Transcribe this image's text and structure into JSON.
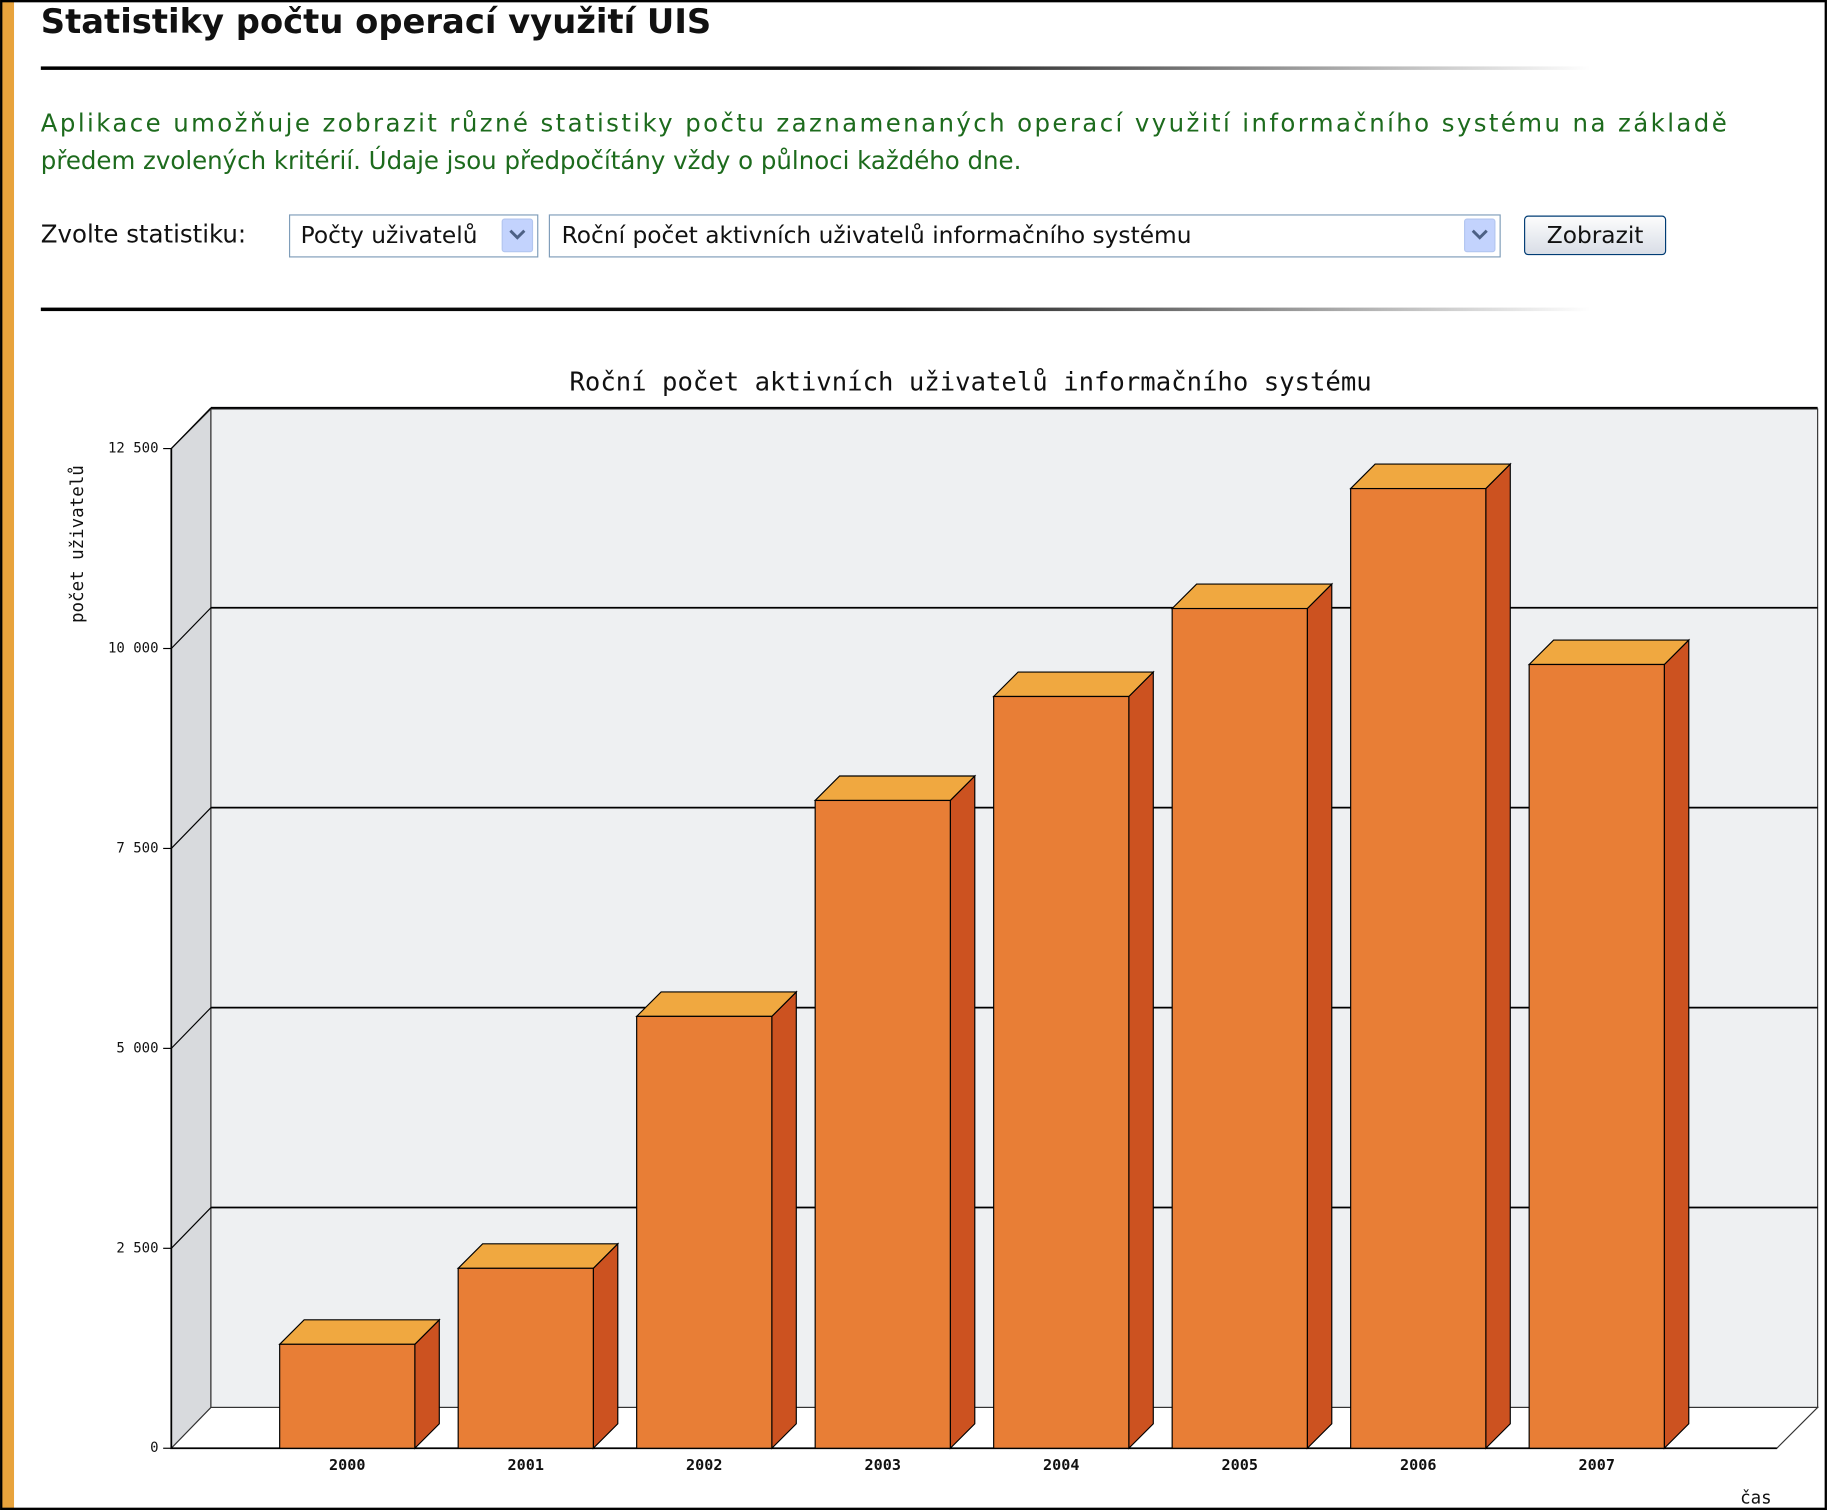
{
  "header": {
    "title": "Statistiky počtu operací využití UIS"
  },
  "description": [
    "Aplikace umožňuje zobrazit různé statistiky počtu zaznamenaných operací využití informačního systému na základě",
    "předem zvolených kritérií. Údaje jsou předpočítány vždy o půlnoci každého dne."
  ],
  "form": {
    "label": "Zvolte statistiku:",
    "category_select": "Počty uživatelů",
    "statistic_select": "Roční počet aktivních uživatelů informačního systému",
    "button": "Zobrazit"
  },
  "chart_data": {
    "type": "bar",
    "title": "Roční počet aktivních uživatelů informačního systému",
    "x_label": "čas",
    "y_label": "počet uživatelů",
    "categories": [
      "2000",
      "2001",
      "2002",
      "2003",
      "2004",
      "2005",
      "2006",
      "2007"
    ],
    "values": [
      1300,
      2250,
      5400,
      8100,
      9400,
      10500,
      12000,
      9800
    ],
    "color": "#e87e36",
    "ylim": [
      0,
      12500
    ],
    "yticks": [
      0,
      {
        "value": 2500,
        "label": "2 500"
      },
      {
        "value": 5000,
        "label": "5 000"
      },
      {
        "value": 7500,
        "label": "7 500"
      },
      {
        "value": 10000,
        "label": "10 000"
      },
      {
        "value": 12500,
        "label": "12 500"
      }
    ],
    "grid": true
  }
}
